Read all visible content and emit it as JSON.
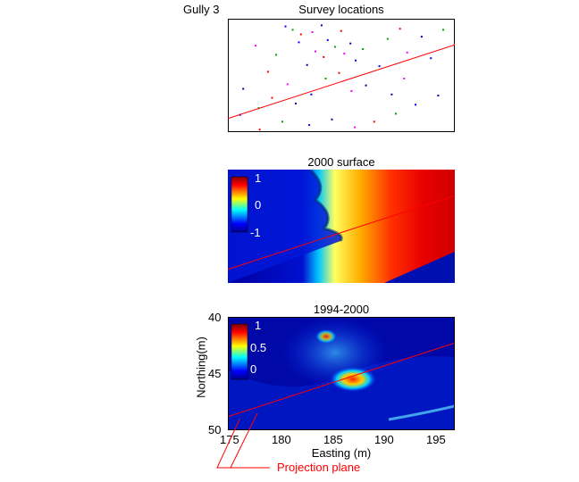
{
  "figure_label": "Gully 3",
  "annotation": "Projection plane",
  "colors": {
    "line": "#ff0000",
    "low": "#00008f",
    "high": "#800000",
    "frame": "#000000"
  },
  "chart_data": [
    {
      "type": "scatter",
      "title": "Survey locations",
      "series_colors": [
        "#0000ff",
        "#00a000",
        "#ff0000",
        "#ff00ff",
        "#0000aa"
      ],
      "points": [
        [
          180.5,
          40.6
        ],
        [
          181.2,
          40.9
        ],
        [
          182.0,
          41.3
        ],
        [
          183.1,
          41.1
        ],
        [
          184.0,
          40.5
        ],
        [
          184.6,
          41.8
        ],
        [
          185.3,
          42.4
        ],
        [
          185.9,
          41.0
        ],
        [
          186.2,
          43.0
        ],
        [
          186.8,
          42.1
        ],
        [
          187.3,
          43.6
        ],
        [
          188.0,
          42.6
        ],
        [
          184.2,
          43.3
        ],
        [
          183.4,
          42.8
        ],
        [
          182.6,
          44.0
        ],
        [
          181.8,
          42.0
        ],
        [
          179.6,
          43.1
        ],
        [
          178.8,
          44.6
        ],
        [
          177.6,
          42.3
        ],
        [
          176.4,
          46.1
        ],
        [
          176.1,
          48.4
        ],
        [
          177.9,
          47.8
        ],
        [
          179.2,
          46.9
        ],
        [
          180.7,
          45.7
        ],
        [
          181.5,
          47.4
        ],
        [
          183.0,
          46.6
        ],
        [
          184.4,
          45.2
        ],
        [
          185.7,
          44.7
        ],
        [
          186.9,
          46.3
        ],
        [
          188.3,
          45.8
        ],
        [
          189.6,
          44.1
        ],
        [
          190.4,
          41.7
        ],
        [
          191.6,
          40.8
        ],
        [
          192.3,
          42.9
        ],
        [
          193.7,
          41.5
        ],
        [
          194.6,
          43.4
        ],
        [
          195.8,
          40.9
        ],
        [
          196.9,
          42.2
        ],
        [
          197.0,
          44.9
        ],
        [
          195.3,
          46.7
        ],
        [
          193.1,
          47.5
        ],
        [
          191.2,
          48.3
        ],
        [
          189.1,
          49.0
        ],
        [
          187.2,
          49.5
        ],
        [
          185.0,
          48.8
        ],
        [
          182.8,
          49.3
        ],
        [
          180.2,
          49.0
        ],
        [
          178.0,
          49.7
        ],
        [
          192.0,
          45.2
        ],
        [
          190.8,
          46.6
        ]
      ],
      "line": [
        [
          175,
          48.8
        ],
        [
          197,
          42.3
        ]
      ],
      "xlim": [
        175,
        197
      ],
      "ylim": [
        40,
        50
      ]
    },
    {
      "type": "heatmap",
      "title": "2000 surface",
      "colorbar_ticks": [
        "1",
        "0",
        "-1"
      ],
      "clim": [
        -1,
        1
      ],
      "line": [
        [
          175,
          48.8
        ],
        [
          197,
          42.3
        ]
      ],
      "xlim": [
        175,
        197
      ],
      "ylim": [
        40,
        50
      ]
    },
    {
      "type": "heatmap",
      "title": "1994-2000",
      "colorbar_ticks": [
        "1",
        "0.5",
        "0"
      ],
      "clim": [
        0,
        1
      ],
      "line": [
        [
          175,
          48.8
        ],
        [
          197,
          42.3
        ]
      ],
      "xlabel": "Easting (m)",
      "ylabel": "Northing(m)",
      "xticks": [
        "175",
        "180",
        "185",
        "190",
        "195"
      ],
      "yticks": [
        "40",
        "45",
        "50"
      ],
      "xlim": [
        175,
        197
      ],
      "ylim": [
        40,
        50
      ]
    }
  ]
}
